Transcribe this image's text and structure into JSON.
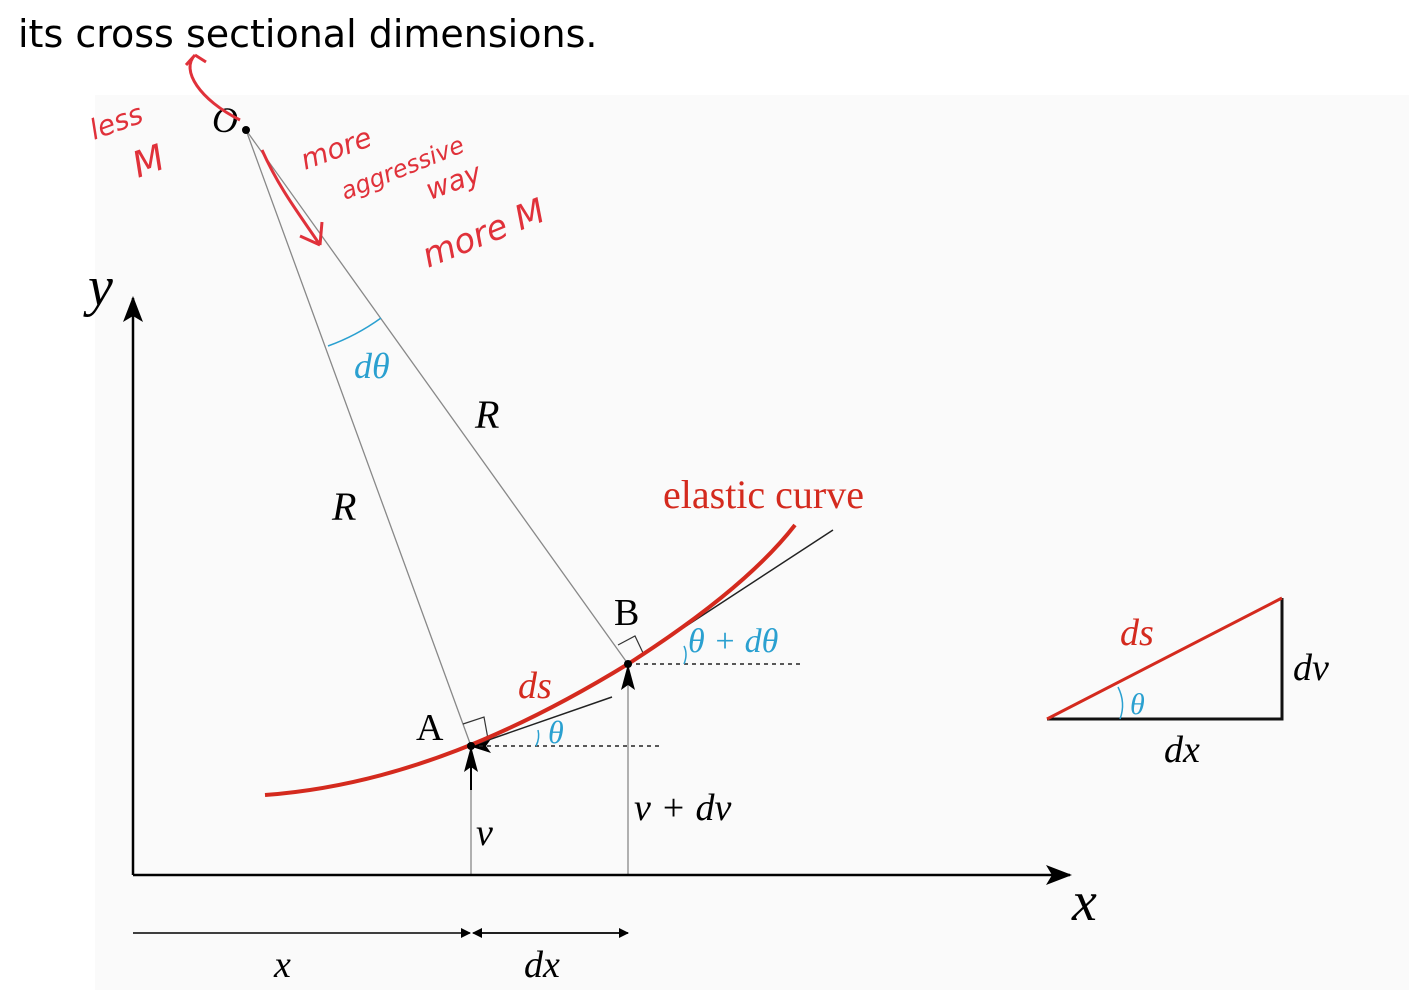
{
  "header": {
    "text": "its cross sectional dimensions."
  },
  "diagram": {
    "point_o": "O",
    "axis_y": "y",
    "axis_x": "x",
    "angle_d_theta": "dθ",
    "radius_b": "R",
    "radius_a": "R",
    "curve_label": "elastic curve",
    "point_b": "B",
    "point_a": "A",
    "angle_b": "θ + dθ",
    "arc_ds": "ds",
    "angle_a": "θ",
    "height_a": "v",
    "height_b": "v + dv",
    "dim_x": "x",
    "dim_dx": "dx"
  },
  "triangle": {
    "hypotenuse": "ds",
    "rise": "dv",
    "angle": "θ",
    "run": "dx"
  },
  "annotations": {
    "less": "less",
    "less_m": "M",
    "more": "more",
    "aggressive": "aggressive",
    "way": "way",
    "more_m": "more M"
  }
}
